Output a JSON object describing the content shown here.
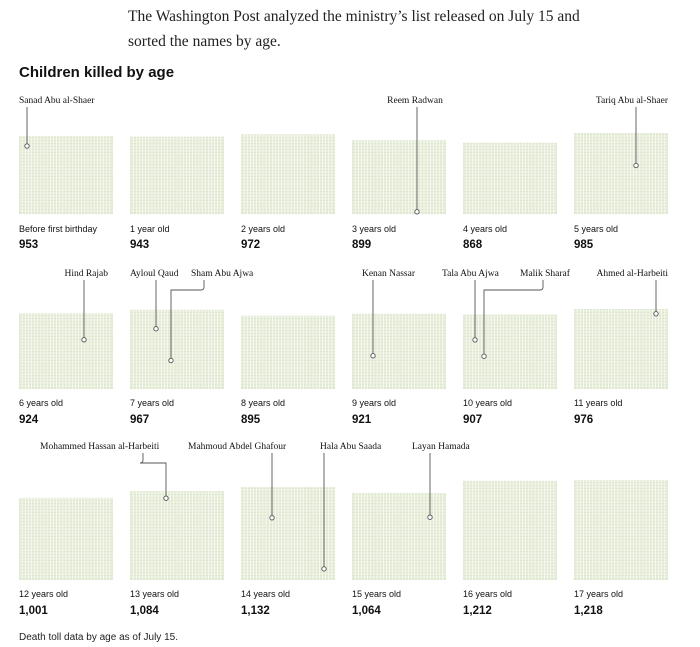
{
  "intro": "The Washington Post analyzed the ministry’s list released on July 15 and sorted the names by age.",
  "chart_title": "Children killed by age",
  "footnote": "Death toll data by age as of July 15.",
  "colors": {
    "cell_fill": "#dfe8cf",
    "grid_line": "#ffffff",
    "callout_line": "#555555",
    "text": "#111111"
  },
  "chart_data": {
    "type": "waffle",
    "title": "Children killed by age",
    "unit": "1 cell = 1 child",
    "categories": [
      "Before first birthday",
      "1 year old",
      "2 years old",
      "3 years old",
      "4 years old",
      "5 years old",
      "6 years old",
      "7 years old",
      "8 years old",
      "9 years old",
      "10 years old",
      "11 years old",
      "12 years old",
      "13 years old",
      "14 years old",
      "15 years old",
      "16 years old",
      "17 years old"
    ],
    "values": [
      953,
      943,
      972,
      899,
      868,
      985,
      924,
      967,
      895,
      921,
      907,
      976,
      1001,
      1084,
      1132,
      1064,
      1212,
      1218
    ],
    "value_labels": [
      "953",
      "943",
      "972",
      "899",
      "868",
      "985",
      "924",
      "967",
      "895",
      "921",
      "907",
      "976",
      "1,001",
      "1,084",
      "1,132",
      "1,064",
      "1,212",
      "1,218"
    ],
    "annotations": [
      {
        "name": "Sanad Abu al-Shaer",
        "age_index": 0,
        "label_row": 0,
        "rank_fraction": 0.13
      },
      {
        "name": "Reem Radwan",
        "age_index": 3,
        "label_row": 0,
        "rank_fraction": 0.97
      },
      {
        "name": "Tariq Abu al-Shaer",
        "age_index": 5,
        "label_row": 0,
        "rank_fraction": 0.4
      },
      {
        "name": "Hind Rajab",
        "age_index": 6,
        "label_row": 1,
        "rank_fraction": 0.35
      },
      {
        "name": "Ayloul Qaud",
        "age_index": 7,
        "label_row": 1,
        "rank_fraction": 0.24
      },
      {
        "name": "Sham Abu Ajwa",
        "age_index": 7,
        "label_row": 1,
        "rank_fraction": 0.64
      },
      {
        "name": "Kenan Nassar",
        "age_index": 9,
        "label_row": 1,
        "rank_fraction": 0.56
      },
      {
        "name": "Tala Abu Ajwa",
        "age_index": 10,
        "label_row": 1,
        "rank_fraction": 0.34
      },
      {
        "name": "Malik Sharaf",
        "age_index": 10,
        "label_row": 1,
        "rank_fraction": 0.56
      },
      {
        "name": "Ahmed al-Harbeiti",
        "age_index": 11,
        "label_row": 1,
        "rank_fraction": 0.06
      },
      {
        "name": "Mohammed Hassan al-Harbeiti",
        "age_index": 13,
        "label_row": 2,
        "rank_fraction": 0.08
      },
      {
        "name": "Mahmoud Abdel Ghafour",
        "age_index": 14,
        "label_row": 2,
        "rank_fraction": 0.33
      },
      {
        "name": "Hala Abu Saada",
        "age_index": 14,
        "label_row": 2,
        "rank_fraction": 0.88
      },
      {
        "name": "Layan Hamada",
        "age_index": 15,
        "label_row": 2,
        "rank_fraction": 0.28
      }
    ]
  }
}
